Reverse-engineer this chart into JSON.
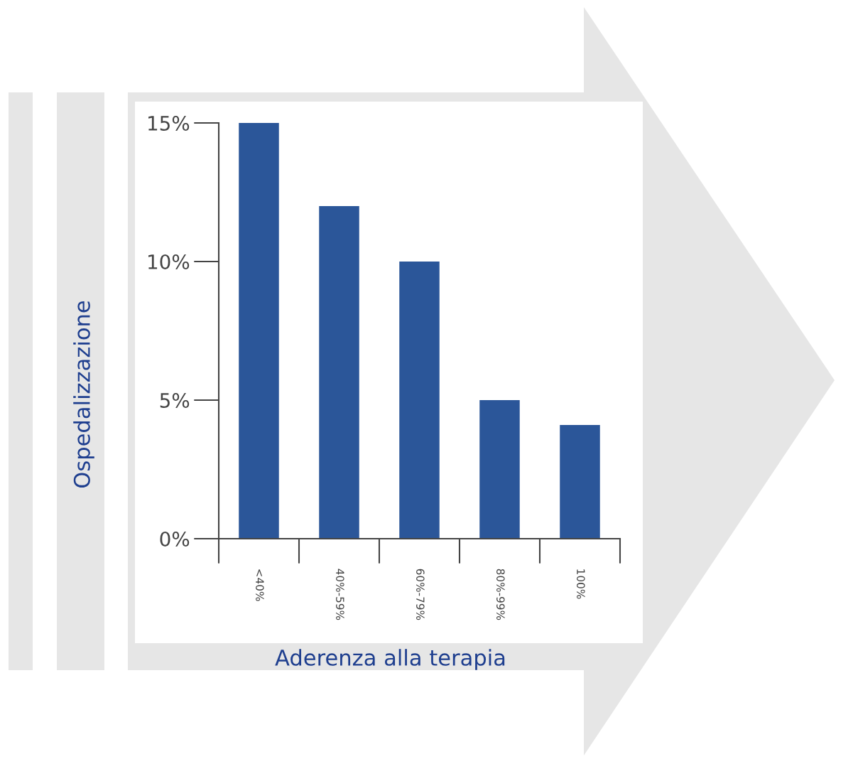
{
  "chart_data": {
    "type": "bar",
    "xlabel": "Aderenza alla terapia",
    "ylabel": "Ospedalizzazione",
    "categories": [
      "<40%",
      "40%-59%",
      "60%-79%",
      "80%-99%",
      "100%"
    ],
    "values": [
      15,
      12,
      10,
      5,
      4.1
    ],
    "color": "#2b5699",
    "ylim": [
      0,
      15
    ],
    "yticks": [
      {
        "value": 0,
        "label": "0%"
      },
      {
        "value": 5,
        "label": "5%"
      },
      {
        "value": 10,
        "label": "10%"
      },
      {
        "value": 15,
        "label": "15%"
      }
    ],
    "grid": false
  }
}
